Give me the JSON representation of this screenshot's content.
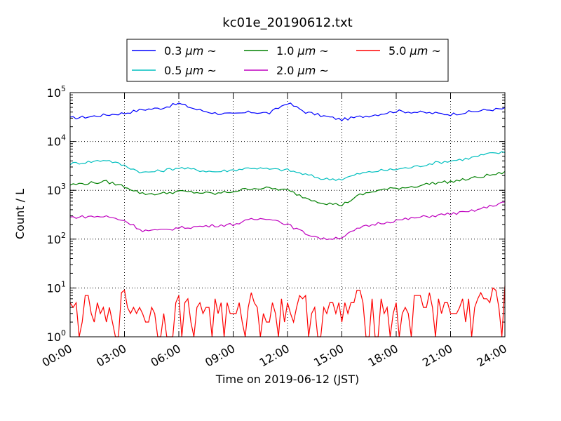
{
  "chart_data": {
    "type": "line",
    "title": "kc01e_20190612.txt",
    "xlabel": "Time on 2019-06-12 (JST)",
    "ylabel": "Count / L",
    "yscale": "log",
    "ylim": [
      1,
      100000
    ],
    "xlim": [
      "00:00",
      "24:00"
    ],
    "grid": true,
    "legend_position": "top-center",
    "legend_columns": 3,
    "x_tick_labels": [
      "00:00",
      "03:00",
      "06:00",
      "09:00",
      "12:00",
      "15:00",
      "18:00",
      "21:00",
      "24:00"
    ],
    "y_ticks": [
      {
        "value": 1,
        "base": "10",
        "exp": "0"
      },
      {
        "value": 10,
        "base": "10",
        "exp": "1"
      },
      {
        "value": 100,
        "base": "10",
        "exp": "2"
      },
      {
        "value": 1000,
        "base": "10",
        "exp": "3"
      },
      {
        "value": 10000,
        "base": "10",
        "exp": "4"
      },
      {
        "value": 100000,
        "base": "10",
        "exp": "5"
      }
    ],
    "x": [
      "00:00",
      "01:00",
      "02:00",
      "03:00",
      "04:00",
      "05:00",
      "06:00",
      "07:00",
      "08:00",
      "09:00",
      "10:00",
      "11:00",
      "12:00",
      "13:00",
      "14:00",
      "15:00",
      "16:00",
      "17:00",
      "18:00",
      "19:00",
      "20:00",
      "21:00",
      "22:00",
      "23:00",
      "24:00"
    ],
    "series": [
      {
        "name_prefix": "0.3 ",
        "name_unit": "μm",
        "name_suffix": " ~",
        "color": "#0000ff",
        "values": [
          30000,
          32000,
          35000,
          38000,
          45000,
          48000,
          60000,
          45000,
          38000,
          36000,
          40000,
          38000,
          62000,
          40000,
          33000,
          28000,
          32000,
          36000,
          42000,
          40000,
          38000,
          36000,
          40000,
          44000,
          47000
        ]
      },
      {
        "name_prefix": "0.5 ",
        "name_unit": "μm",
        "name_suffix": " ~",
        "color": "#00bfbf",
        "values": [
          3500,
          3800,
          4200,
          3200,
          2300,
          2500,
          2900,
          2600,
          2400,
          2600,
          2900,
          2700,
          2600,
          2100,
          1700,
          1700,
          2200,
          2500,
          2700,
          3000,
          3600,
          4000,
          4500,
          5500,
          6000
        ]
      },
      {
        "name_prefix": "1.0 ",
        "name_unit": "μm",
        "name_suffix": " ~",
        "color": "#008000",
        "values": [
          1300,
          1400,
          1500,
          1200,
          850,
          850,
          950,
          900,
          850,
          950,
          1100,
          1100,
          1000,
          700,
          550,
          500,
          800,
          1000,
          1100,
          1200,
          1400,
          1500,
          1700,
          2000,
          2300
        ]
      },
      {
        "name_prefix": "2.0 ",
        "name_unit": "μm",
        "name_suffix": " ~",
        "color": "#bf00bf",
        "values": [
          280,
          290,
          290,
          240,
          150,
          150,
          170,
          180,
          190,
          200,
          250,
          270,
          200,
          130,
          100,
          110,
          170,
          210,
          240,
          270,
          300,
          330,
          360,
          450,
          580
        ]
      },
      {
        "name_prefix": "5.0 ",
        "name_unit": "μm",
        "name_suffix": " ~",
        "color": "#ff0000",
        "values": [
          3,
          4,
          2,
          5,
          3,
          2,
          4,
          3,
          4,
          2,
          5,
          3,
          4,
          4,
          3,
          3,
          5,
          4,
          3,
          4,
          5,
          3,
          4,
          5,
          6
        ]
      }
    ]
  }
}
